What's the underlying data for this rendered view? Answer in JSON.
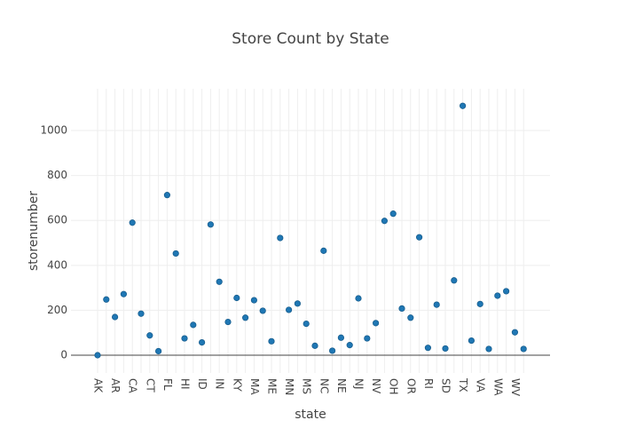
{
  "chart_data": {
    "type": "scatter",
    "title": "Store Count by State",
    "x_label": "state",
    "y_label": "storenumber",
    "categories": [
      "AK",
      null,
      "AR",
      null,
      "CA",
      null,
      "CT",
      null,
      "FL",
      null,
      "HI",
      null,
      "ID",
      null,
      "IN",
      null,
      "KY",
      null,
      "MA",
      null,
      "ME",
      null,
      "MN",
      null,
      "MS",
      null,
      "NC",
      null,
      "NE",
      null,
      "NJ",
      null,
      "NV",
      null,
      "OH",
      null,
      "OR",
      null,
      "RI",
      null,
      "SD",
      null,
      "TX",
      null,
      "VA",
      null,
      "WA",
      null,
      "WV",
      null
    ],
    "values": [
      0,
      248,
      170,
      272,
      590,
      185,
      88,
      18,
      713,
      453,
      75,
      135,
      57,
      582,
      327,
      148,
      255,
      167,
      245,
      198,
      62,
      522,
      202,
      230,
      140,
      42,
      465,
      20,
      78,
      45,
      253,
      75,
      143,
      598,
      630,
      208,
      167,
      525,
      33,
      225,
      30,
      333,
      1110,
      65,
      228,
      28,
      265,
      285,
      102,
      28
    ],
    "color": "#1f77b4",
    "ylim": [
      -79,
      1186
    ],
    "yticks": [
      0,
      200,
      400,
      600,
      800,
      1000
    ],
    "grid": true
  }
}
